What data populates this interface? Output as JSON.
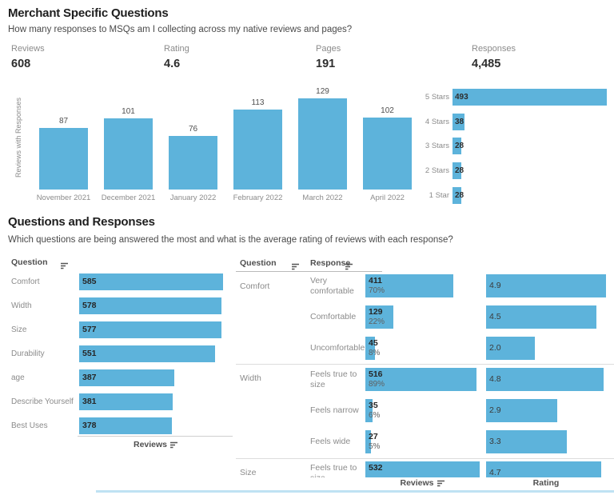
{
  "colors": {
    "bar_blue": "#5DB3DB",
    "bottom_strip": "#BFE2F3"
  },
  "section1": {
    "title": "Merchant Specific Questions",
    "subtitle": "How many responses to MSQs am I collecting across my native reviews and pages?"
  },
  "kpis": [
    {
      "label": "Reviews",
      "value": "608"
    },
    {
      "label": "Rating",
      "value": "4.6"
    },
    {
      "label": "Pages",
      "value": "191"
    },
    {
      "label": "Responses",
      "value": "4,485"
    }
  ],
  "section2": {
    "title": "Questions and Responses",
    "subtitle": "Which questions are being answered the most and what is the average rating of reviews with each response?"
  },
  "chart_data": [
    {
      "id": "reviews-by-month",
      "type": "bar",
      "title": "",
      "ylabel": "Reviews with Responses",
      "categories": [
        "November 2021",
        "December 2021",
        "January 2022",
        "February 2022",
        "March 2022",
        "April 2022"
      ],
      "values": [
        87,
        101,
        76,
        113,
        129,
        102
      ],
      "ylim": [
        0,
        129
      ],
      "grid": false,
      "legend": false
    },
    {
      "id": "responses-by-stars",
      "type": "bar-horizontal",
      "categories": [
        "5 Stars",
        "4 Stars",
        "3 Stars",
        "2 Stars",
        "1 Star"
      ],
      "values": [
        493,
        38,
        28,
        28,
        28
      ],
      "xlim": [
        0,
        493
      ],
      "grid": false,
      "legend": false
    },
    {
      "id": "reviews-by-question",
      "type": "bar-horizontal",
      "header": "Question",
      "xlabel": "Reviews",
      "categories": [
        "Comfort",
        "Width",
        "Size",
        "Durability",
        "age",
        "Describe Yourself",
        "Best Uses"
      ],
      "values": [
        585,
        578,
        577,
        551,
        387,
        381,
        378
      ],
      "xlim": [
        0,
        600
      ],
      "grid": false,
      "legend": false
    },
    {
      "id": "responses-and-ratings",
      "type": "table",
      "col_question": "Question",
      "col_response": "Response",
      "xlabel_reviews": "Reviews",
      "xlabel_rating": "Rating",
      "rating_xlim": [
        0,
        5
      ],
      "reviews_xlim": [
        0,
        532
      ],
      "groups": [
        {
          "question": "Comfort",
          "rows": [
            {
              "response": "Very\ncomfortable",
              "reviews": 411,
              "pct": "70%",
              "rating": "4.9"
            },
            {
              "response": "Comfortable",
              "reviews": 129,
              "pct": "22%",
              "rating": "4.5"
            },
            {
              "response": "Uncomfortable",
              "reviews": 45,
              "pct": "8%",
              "rating": "2.0"
            }
          ]
        },
        {
          "question": "Width",
          "rows": [
            {
              "response": "Feels true to\nsize",
              "reviews": 516,
              "pct": "89%",
              "rating": "4.8"
            },
            {
              "response": "Feels narrow",
              "reviews": 35,
              "pct": "6%",
              "rating": "2.9"
            },
            {
              "response": "Feels wide",
              "reviews": 27,
              "pct": "5%",
              "rating": "3.3"
            }
          ]
        },
        {
          "question": "Size",
          "rows": [
            {
              "response": "Feels true to\nsize",
              "reviews": 532,
              "pct": "",
              "rating": "4.7"
            }
          ]
        }
      ]
    }
  ]
}
